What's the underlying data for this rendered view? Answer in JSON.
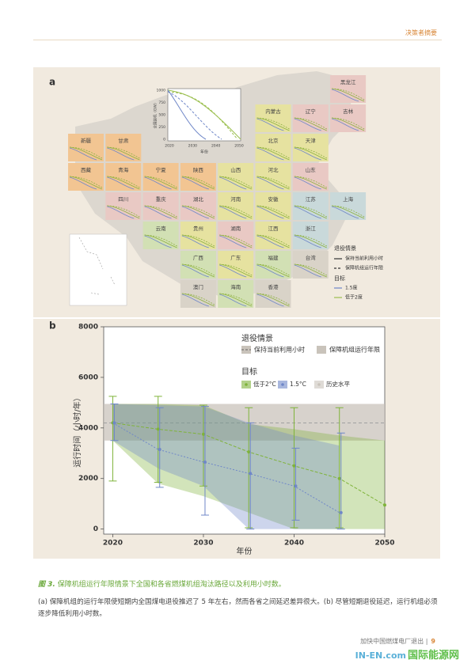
{
  "header": {
    "section": "决策者摘要"
  },
  "panel_a": {
    "label": "a",
    "inset": {
      "ylabel": "全国装机（GW）",
      "xlabel": "年份",
      "yticks": [
        1000,
        750,
        500,
        250,
        0
      ],
      "xticks": [
        2020,
        2030,
        2040,
        2050
      ]
    },
    "provinces": [
      "黑龙江",
      "内蒙古",
      "辽宁",
      "吉林",
      "新疆",
      "甘肃",
      "北京",
      "天津",
      "西藏",
      "青海",
      "宁夏",
      "陕西",
      "山西",
      "河北",
      "山东",
      "四川",
      "重庆",
      "湖北",
      "河南",
      "安徽",
      "江苏",
      "上海",
      "云南",
      "贵州",
      "湖南",
      "江西",
      "浙江",
      "广西",
      "广东",
      "福建",
      "台湾",
      "澳门",
      "海南",
      "香港"
    ],
    "legend": {
      "scenario_title": "退役情景",
      "scenario_current": "保持当前利用小时",
      "scenario_lifetime": "保障机组运行年限",
      "target_title": "目标",
      "target_15": "1.5度",
      "target_2": "低于2度"
    }
  },
  "panel_b": {
    "label": "b",
    "chart": {
      "type": "line",
      "xlabel": "年份",
      "ylabel": "运行时间（小时/年）",
      "xlim": [
        2019,
        2050
      ],
      "xticks": [
        2020,
        2030,
        2040,
        2050
      ],
      "ylim": [
        -200,
        8000
      ],
      "yticks": [
        0,
        2000,
        4000,
        6000,
        8000
      ],
      "x": [
        2020,
        2025,
        2030,
        2035,
        2040,
        2045,
        2050
      ],
      "historical": {
        "name": "历史水平",
        "color": "#c9c3bb",
        "lower": 3500,
        "upper": 4950,
        "mean": 4200
      },
      "series": [
        {
          "name": "低于2°C",
          "color": "#7fb33a",
          "values": [
            4200,
            3950,
            3750,
            3050,
            2500,
            2000,
            950
          ],
          "upper": [
            5250,
            5250,
            4900,
            4800,
            4800,
            4800,
            null
          ],
          "lower": [
            1900,
            1850,
            1700,
            50,
            50,
            50,
            null
          ],
          "band_upper": [
            4950,
            4950,
            4900,
            4150,
            3950,
            3700,
            3500
          ],
          "band_lower": [
            3500,
            1800,
            1300,
            650,
            0,
            0,
            0
          ]
        },
        {
          "name": "1.5°C",
          "color": "#6f87c8",
          "values": [
            4200,
            3150,
            2650,
            2200,
            1700,
            650,
            null
          ],
          "upper": [
            4950,
            4800,
            4850,
            4200,
            3200,
            3800,
            null
          ],
          "lower": [
            3500,
            1650,
            550,
            0,
            350,
            0,
            null
          ],
          "band_upper": [
            4950,
            4900,
            4850,
            4200,
            3700,
            3300,
            null
          ],
          "band_lower": [
            3500,
            2400,
            1700,
            0,
            0,
            0,
            null
          ]
        }
      ],
      "legend": {
        "scenario_title": "退役情景",
        "scenario_current": "保持当前利用小时",
        "scenario_lifetime": "保障机组运行年限",
        "target_title": "目标"
      }
    }
  },
  "caption": {
    "number": "图 3.",
    "text": "保障机组运行年限情景下全国和各省燃煤机组淘汰路径以及利用小时数。"
  },
  "body": "(a) 保障机组的运行年限使短期内全国煤电退役推迟了 5 年左右，然而各省之间延迟差异很大。(b) 尽管短期退役延迟，运行机组必须逐步降低利用小时数。",
  "footer": {
    "title": "加快中国燃煤电厂退出",
    "separator": "|",
    "page": "9"
  },
  "logo": {
    "en": "IN-EN.com",
    "cn": "国际能源网"
  }
}
